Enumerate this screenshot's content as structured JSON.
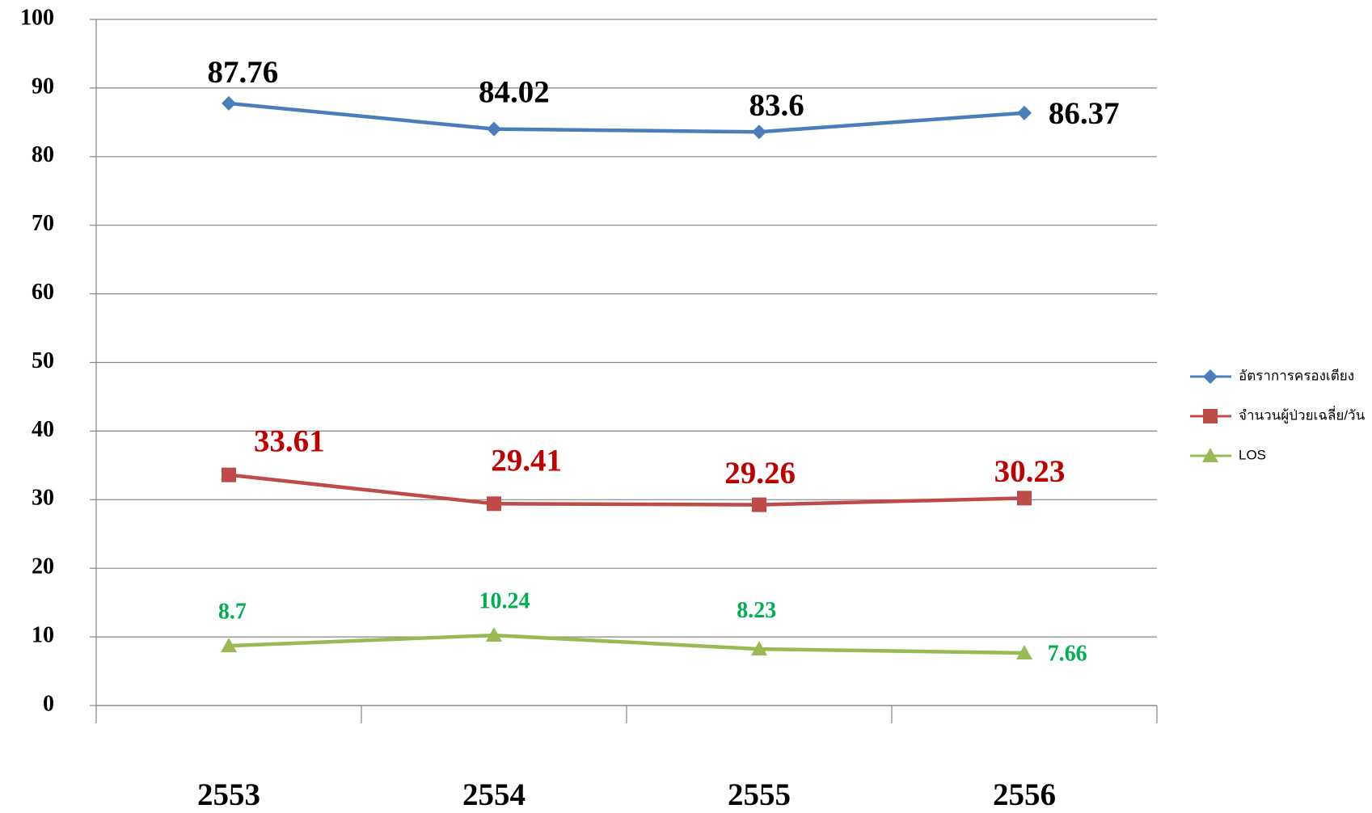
{
  "chart_data": {
    "type": "line",
    "categories": [
      "2553",
      "2554",
      "2555",
      "2556"
    ],
    "series": [
      {
        "name": "อัตราการครองเตียง",
        "color": "#4a7ebb",
        "label_color": "#000000",
        "marker": "diamond",
        "values": [
          87.76,
          84.02,
          83.6,
          86.37
        ]
      },
      {
        "name": "จำนวนผู้ป่วยเฉลี่ย/วัน",
        "color": "#be4b48",
        "label_color": "#c00000",
        "marker": "square",
        "values": [
          33.61,
          29.41,
          29.26,
          30.23
        ]
      },
      {
        "name": "LOS",
        "color": "#98b954",
        "label_color": "#00b050",
        "marker": "triangle",
        "values": [
          8.7,
          10.24,
          8.23,
          7.66
        ]
      }
    ],
    "ylim": [
      0,
      100
    ],
    "yticks": [
      0,
      10,
      20,
      30,
      40,
      50,
      60,
      70,
      80,
      90,
      100
    ],
    "grid": true,
    "legend": "right"
  }
}
